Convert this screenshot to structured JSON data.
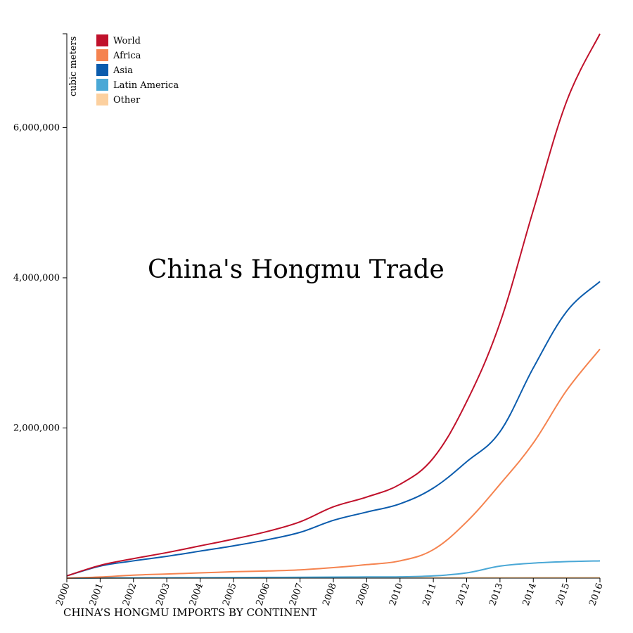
{
  "chart_data": {
    "type": "line",
    "title": "China's Hongmu Trade",
    "xlabel": "CHINA’S HONGMU IMPORTS BY CONTINENT",
    "ylabel": "cubic meters",
    "x": [
      "2000",
      "2001",
      "2002",
      "2003",
      "2004",
      "2005",
      "2006",
      "2007",
      "2008",
      "2009",
      "2010",
      "2011",
      "2012",
      "2013",
      "2014",
      "2015",
      "2016"
    ],
    "ylim": [
      0,
      7250000
    ],
    "yticks": [
      2000000,
      4000000,
      6000000
    ],
    "ytick_labels": [
      "2,000,000",
      "4,000,000",
      "6,000,000"
    ],
    "legend_position": "top-left",
    "grid": false,
    "series": [
      {
        "name": "World",
        "color": "#c0112b",
        "values": [
          30000,
          170000,
          260000,
          340000,
          430000,
          520000,
          620000,
          750000,
          950000,
          1080000,
          1250000,
          1600000,
          2350000,
          3400000,
          4900000,
          6350000,
          7250000
        ]
      },
      {
        "name": "Africa",
        "color": "#f5834f",
        "values": [
          0,
          15000,
          40000,
          55000,
          70000,
          85000,
          95000,
          110000,
          140000,
          180000,
          230000,
          380000,
          750000,
          1250000,
          1800000,
          2500000,
          3050000
        ]
      },
      {
        "name": "Asia",
        "color": "#0b5cad",
        "values": [
          30000,
          160000,
          230000,
          290000,
          360000,
          430000,
          510000,
          610000,
          770000,
          880000,
          990000,
          1200000,
          1550000,
          1950000,
          2800000,
          3550000,
          3950000
        ]
      },
      {
        "name": "Latin America",
        "color": "#4aa8d6",
        "values": [
          0,
          2000,
          4000,
          5000,
          6000,
          8000,
          10000,
          12000,
          14000,
          16000,
          18000,
          30000,
          70000,
          160000,
          200000,
          220000,
          230000
        ]
      },
      {
        "name": "Other",
        "color": "#fcd09f",
        "values": [
          0,
          1000,
          2000,
          3000,
          3000,
          4000,
          4000,
          5000,
          5000,
          6000,
          6000,
          6000,
          7000,
          7000,
          8000,
          8000,
          8000
        ]
      }
    ]
  }
}
